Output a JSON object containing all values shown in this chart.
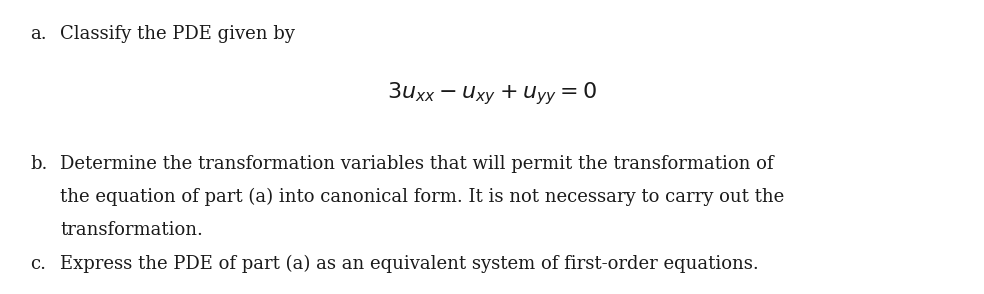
{
  "background_color": "#ffffff",
  "fig_width": 9.84,
  "fig_height": 2.94,
  "dpi": 100,
  "text_color": "#1a1a1a",
  "label_a": "a.",
  "label_b": "b.",
  "label_c": "c.",
  "text_a": "Classify the PDE given by",
  "equation": "$3u_{xx} - u_{xy} + u_{yy} = 0$",
  "text_b_line1": "Determine the transformation variables that will permit the transformation of",
  "text_b_line2": "the equation of part (a) into canonical form. It is not necessary to carry out the",
  "text_b_line3": "transformation.",
  "text_c": "Express the PDE of part (a) as an equivalent system of first-order equations.",
  "font_size_text": 13,
  "font_size_eq": 16
}
